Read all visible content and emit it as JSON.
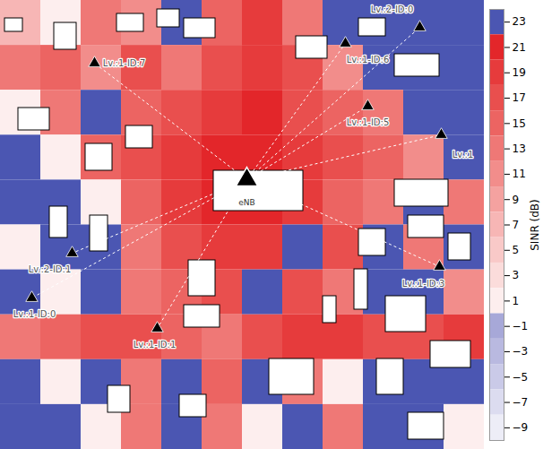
{
  "chart_data": {
    "type": "heatmap",
    "cells": [
      [
        7,
        1,
        13,
        11,
        23,
        15,
        19,
        13,
        23,
        23,
        23,
        23
      ],
      [
        13,
        15,
        11,
        17,
        13,
        17,
        19,
        17,
        11,
        23,
        23,
        23
      ],
      [
        1,
        13,
        23,
        15,
        17,
        19,
        21,
        17,
        15,
        13,
        23,
        23
      ],
      [
        23,
        1,
        15,
        17,
        19,
        21,
        21,
        19,
        17,
        15,
        11,
        23
      ],
      [
        23,
        23,
        1,
        15,
        19,
        21,
        21,
        19,
        15,
        13,
        23,
        13
      ],
      [
        1,
        23,
        23,
        13,
        17,
        19,
        19,
        23,
        17,
        23,
        13,
        23
      ],
      [
        23,
        1,
        23,
        13,
        15,
        17,
        23,
        17,
        13,
        23,
        23,
        11
      ],
      [
        13,
        15,
        17,
        17,
        15,
        13,
        17,
        19,
        19,
        17,
        17,
        19
      ],
      [
        23,
        1,
        23,
        13,
        23,
        15,
        23,
        13,
        1,
        23,
        23,
        23
      ],
      [
        23,
        23,
        1,
        13,
        23,
        13,
        1,
        23,
        13,
        23,
        23,
        1
      ]
    ],
    "colorbar": {
      "label": "SINR (dB)",
      "ylim": [
        -10,
        24
      ],
      "yticks": [
        23,
        21,
        19,
        17,
        15,
        13,
        11,
        9,
        7,
        5,
        3,
        1,
        -1,
        -3,
        -5,
        -7,
        -9
      ],
      "colors": [
        "#4b56b2",
        "#e3262a",
        "#e63b3c",
        "#e94f4e",
        "#ec6462",
        "#ef7876",
        "#f28d8b",
        "#f4a2a0",
        "#f7b6b5",
        "#f9c9c8",
        "#fbdcdb",
        "#fdeeee",
        "#a7a8d8",
        "#b9b9e0",
        "#cacae8",
        "#dcdcf0",
        "#ededf7"
      ]
    },
    "base_station": "eNB",
    "nodes": [
      "Lv.:2-ID:0",
      "Lv.:1-ID:6",
      "Lv.:1-ID:7",
      "Lv.:1-ID:5",
      "Lv.:1",
      "Lv.:1-ID:3",
      "Lv.:2-ID:1",
      "Lv.:1-ID:0",
      "Lv.:1-ID:1"
    ]
  }
}
